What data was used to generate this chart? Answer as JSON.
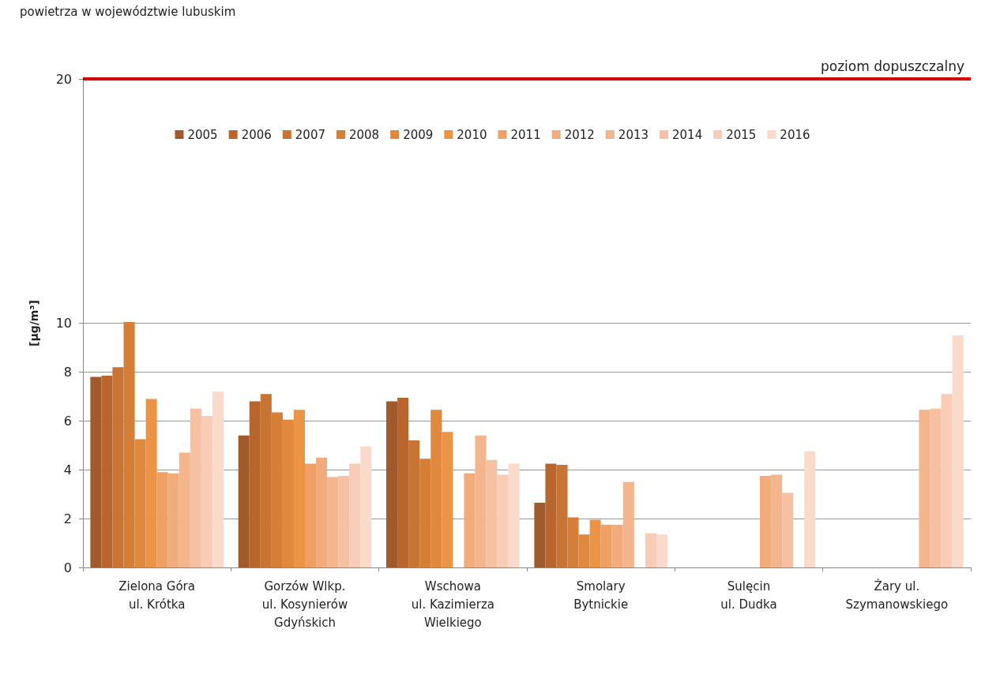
{
  "chart_data": {
    "type": "bar",
    "title": "powietrza w województwie lubuskim",
    "ylabel": "[µg/m³]",
    "categories": [
      "Zielona Góra\nul. Krótka",
      "Gorzów Wlkp.\nul. Kosynierów\nGdyńskich",
      "Wschowa\nul. Kazimierza\nWielkiego",
      "Smolary\nBytnickie",
      "Sulęcin\nul. Dudka",
      "Żary ul.\nSzymanowskiego"
    ],
    "series": [
      {
        "name": "2005",
        "color": "#a05a2c",
        "values": [
          7.8,
          5.4,
          6.8,
          2.65,
          null,
          null
        ]
      },
      {
        "name": "2006",
        "color": "#b8662e",
        "values": [
          7.85,
          6.8,
          6.95,
          4.25,
          null,
          null
        ]
      },
      {
        "name": "2007",
        "color": "#c87434",
        "values": [
          8.2,
          7.1,
          5.2,
          4.2,
          null,
          null
        ]
      },
      {
        "name": "2008",
        "color": "#d47e38",
        "values": [
          10.05,
          6.35,
          4.45,
          2.05,
          null,
          null
        ]
      },
      {
        "name": "2009",
        "color": "#e0883e",
        "values": [
          5.25,
          6.05,
          6.45,
          1.35,
          null,
          null
        ]
      },
      {
        "name": "2010",
        "color": "#ec9446",
        "values": [
          6.9,
          6.45,
          5.55,
          1.95,
          null,
          null
        ]
      },
      {
        "name": "2011",
        "color": "#f0a062",
        "values": [
          3.9,
          4.25,
          null,
          1.75,
          null,
          null
        ]
      },
      {
        "name": "2012",
        "color": "#f2ac7c",
        "values": [
          3.85,
          4.5,
          3.85,
          1.75,
          3.75,
          null
        ]
      },
      {
        "name": "2013",
        "color": "#f4b48c",
        "values": [
          4.7,
          3.7,
          5.4,
          3.5,
          3.8,
          6.45
        ]
      },
      {
        "name": "2014",
        "color": "#f6c0a2",
        "values": [
          6.5,
          3.75,
          4.4,
          null,
          3.05,
          6.5
        ]
      },
      {
        "name": "2015",
        "color": "#f8ccb6",
        "values": [
          6.2,
          4.25,
          3.8,
          1.4,
          null,
          7.1
        ]
      },
      {
        "name": "2016",
        "color": "#fadacb",
        "values": [
          7.2,
          4.95,
          4.25,
          1.35,
          4.75,
          9.5
        ]
      }
    ],
    "ylim": [
      0,
      20
    ],
    "yticks": [
      0,
      2,
      4,
      6,
      8,
      10,
      20
    ],
    "ref_lines": [
      {
        "axis": "y",
        "value": 20,
        "label": "poziom dopuszczalny",
        "color": "#d40000"
      }
    ],
    "grid": "y",
    "legend": "top"
  }
}
